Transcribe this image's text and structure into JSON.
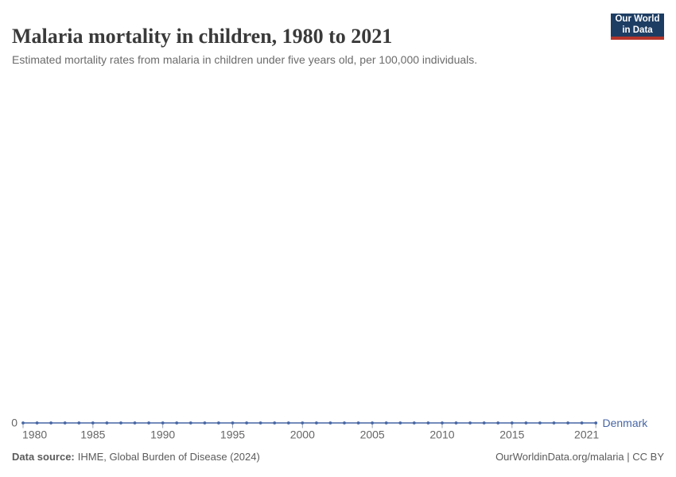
{
  "chart_data": {
    "type": "line",
    "title": "Malaria mortality in children, 1980 to 2021",
    "subtitle": "Estimated mortality rates from malaria in children under five years old, per 100,000 individuals.",
    "entity": "Denmark",
    "x": [
      1980,
      1981,
      1982,
      1983,
      1984,
      1985,
      1986,
      1987,
      1988,
      1989,
      1990,
      1991,
      1992,
      1993,
      1994,
      1995,
      1996,
      1997,
      1998,
      1999,
      2000,
      2001,
      2002,
      2003,
      2004,
      2005,
      2006,
      2007,
      2008,
      2009,
      2010,
      2011,
      2012,
      2013,
      2014,
      2015,
      2016,
      2017,
      2018,
      2019,
      2020,
      2021
    ],
    "values": [
      0,
      0,
      0,
      0,
      0,
      0,
      0,
      0,
      0,
      0,
      0,
      0,
      0,
      0,
      0,
      0,
      0,
      0,
      0,
      0,
      0,
      0,
      0,
      0,
      0,
      0,
      0,
      0,
      0,
      0,
      0,
      0,
      0,
      0,
      0,
      0,
      0,
      0,
      0,
      0,
      0,
      0
    ],
    "x_ticks": [
      1980,
      1985,
      1990,
      1995,
      2000,
      2005,
      2010,
      2015,
      2021
    ],
    "y_ticks": [
      0
    ],
    "y_axis_labels": [
      "0"
    ],
    "grid": false,
    "legend": "inline-entity-label",
    "marker": "circle"
  },
  "header": {
    "logo": {
      "line1": "Our World",
      "line2": "in Data"
    }
  },
  "footer": {
    "data_source_label": "Data source:",
    "data_source_value": "IHME, Global Burden of Disease (2024)",
    "credit": "OurWorldinData.org/malaria | CC BY"
  },
  "colors": {
    "line": "#4766a4",
    "axis_text": "#666666",
    "tick": "#9aa4b4",
    "logo_navy": "#1d3d63",
    "logo_red": "#b5352b",
    "title_text": "#3a3a3a",
    "subtitle_text": "#6b6b6b",
    "footer_text": "#5b5b5b"
  }
}
